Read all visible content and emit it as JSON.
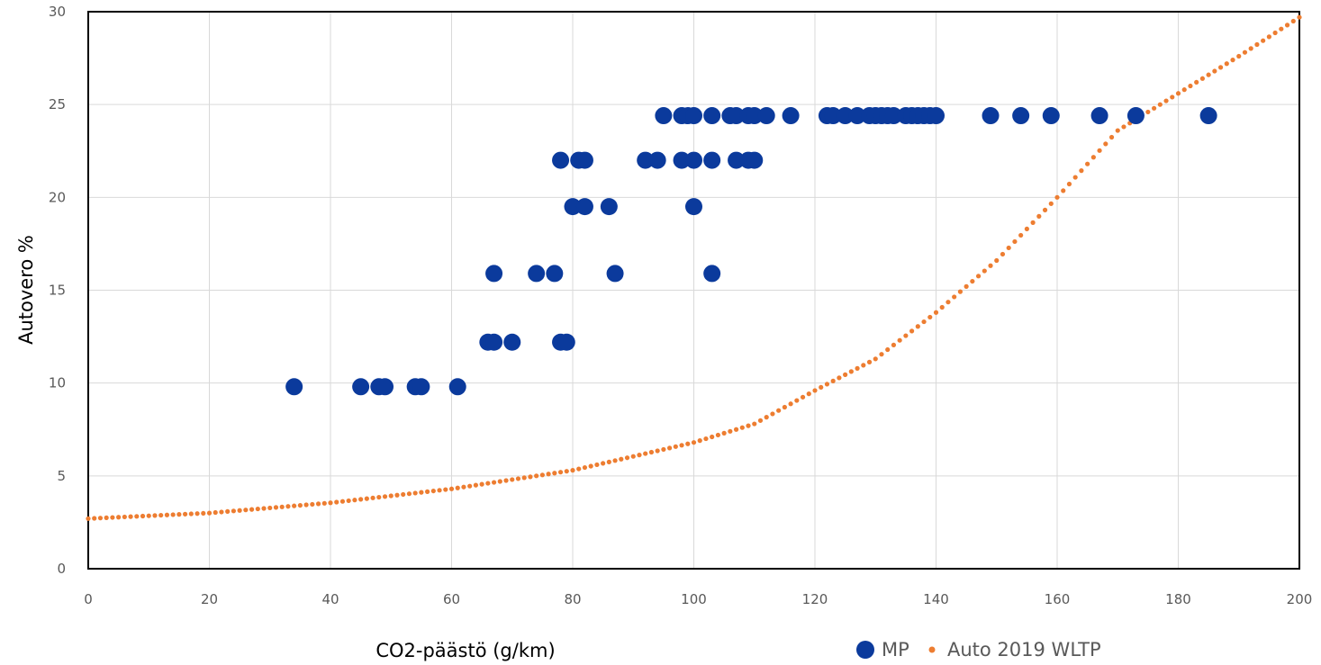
{
  "chart_data": {
    "type": "scatter",
    "title": "",
    "xlabel": "CO2-päästö (g/km)",
    "ylabel": "Autovero %",
    "xlim": [
      0,
      200
    ],
    "ylim": [
      0,
      30
    ],
    "x_ticks": [
      0,
      20,
      40,
      60,
      80,
      100,
      120,
      140,
      160,
      180,
      200
    ],
    "y_ticks": [
      0,
      5,
      10,
      15,
      20,
      25,
      30
    ],
    "grid": true,
    "legend_position": "bottom-right",
    "series": [
      {
        "name": "MP",
        "color": "#0b3a9c",
        "marker": "large-circle",
        "points": [
          [
            34,
            9.8
          ],
          [
            45,
            9.8
          ],
          [
            48,
            9.8
          ],
          [
            49,
            9.8
          ],
          [
            54,
            9.8
          ],
          [
            55,
            9.8
          ],
          [
            61,
            9.8
          ],
          [
            66,
            12.2
          ],
          [
            67,
            12.2
          ],
          [
            70,
            12.2
          ],
          [
            78,
            12.2
          ],
          [
            79,
            12.2
          ],
          [
            67,
            15.9
          ],
          [
            74,
            15.9
          ],
          [
            77,
            15.9
          ],
          [
            87,
            15.9
          ],
          [
            103,
            15.9
          ],
          [
            80,
            19.5
          ],
          [
            82,
            19.5
          ],
          [
            86,
            19.5
          ],
          [
            100,
            19.5
          ],
          [
            78,
            22
          ],
          [
            81,
            22
          ],
          [
            82,
            22
          ],
          [
            92,
            22
          ],
          [
            94,
            22
          ],
          [
            98,
            22
          ],
          [
            100,
            22
          ],
          [
            103,
            22
          ],
          [
            107,
            22
          ],
          [
            109,
            22
          ],
          [
            110,
            22
          ],
          [
            95,
            24.4
          ],
          [
            98,
            24.4
          ],
          [
            99,
            24.4
          ],
          [
            100,
            24.4
          ],
          [
            103,
            24.4
          ],
          [
            106,
            24.4
          ],
          [
            107,
            24.4
          ],
          [
            109,
            24.4
          ],
          [
            110,
            24.4
          ],
          [
            112,
            24.4
          ],
          [
            116,
            24.4
          ],
          [
            122,
            24.4
          ],
          [
            123,
            24.4
          ],
          [
            125,
            24.4
          ],
          [
            127,
            24.4
          ],
          [
            129,
            24.4
          ],
          [
            130,
            24.4
          ],
          [
            131,
            24.4
          ],
          [
            132,
            24.4
          ],
          [
            133,
            24.4
          ],
          [
            135,
            24.4
          ],
          [
            136,
            24.4
          ],
          [
            137,
            24.4
          ],
          [
            138,
            24.4
          ],
          [
            139,
            24.4
          ],
          [
            140,
            24.4
          ],
          [
            149,
            24.4
          ],
          [
            154,
            24.4
          ],
          [
            159,
            24.4
          ],
          [
            167,
            24.4
          ],
          [
            173,
            24.4
          ],
          [
            185,
            24.4
          ]
        ]
      },
      {
        "name": "Auto 2019 WLTP",
        "color": "#ed7d31",
        "marker": "small-dot",
        "x_start": 0,
        "x_end": 200,
        "x_step": 1,
        "curve_knots": [
          [
            0,
            2.7
          ],
          [
            20,
            3.0
          ],
          [
            40,
            3.55
          ],
          [
            60,
            4.3
          ],
          [
            80,
            5.3
          ],
          [
            100,
            6.8
          ],
          [
            110,
            7.8
          ],
          [
            120,
            9.6
          ],
          [
            130,
            11.3
          ],
          [
            140,
            13.8
          ],
          [
            150,
            16.6
          ],
          [
            160,
            20.0
          ],
          [
            170,
            23.6
          ],
          [
            180,
            25.6
          ],
          [
            190,
            27.6
          ],
          [
            200,
            29.7
          ]
        ]
      }
    ]
  },
  "legend": {
    "mp_label": "MP",
    "auto_label": "Auto 2019 WLTP"
  }
}
